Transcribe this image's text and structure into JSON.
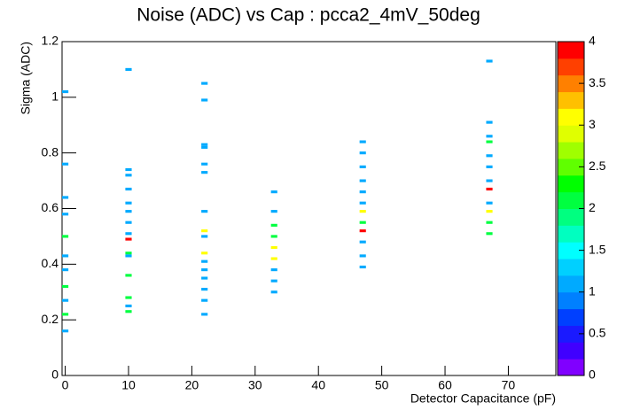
{
  "chart_data": {
    "type": "heatmap2d",
    "title": "Noise (ADC) vs Cap : pcca2_4mV_50deg",
    "x_label": "Detector Capacitance (pF)",
    "y_label": "Sigma (ADC)",
    "xlim": [
      -0.5,
      77.5
    ],
    "xticks": [
      0,
      10,
      20,
      30,
      40,
      50,
      60,
      70
    ],
    "ylim": [
      0,
      1.2
    ],
    "yticks": [
      0,
      0.2,
      0.4,
      0.6,
      0.8,
      1,
      1.2
    ],
    "zlim": [
      0,
      4
    ],
    "zticks": [
      0,
      0.5,
      1,
      1.5,
      2,
      2.5,
      3,
      3.5,
      4
    ],
    "palette": [
      "#8000ff",
      "#4000ff",
      "#1a1aff",
      "#0040ff",
      "#0080ff",
      "#00aaff",
      "#00d0ff",
      "#00ffff",
      "#00ffc0",
      "#00ff80",
      "#00ff40",
      "#00ff00",
      "#60ff00",
      "#a0ff00",
      "#e0ff00",
      "#ffff00",
      "#ffc000",
      "#ff8000",
      "#ff4000",
      "#ff0000"
    ],
    "x": [
      0,
      0,
      0,
      0,
      0,
      0,
      0,
      0,
      0,
      0,
      0,
      10,
      10,
      10,
      10,
      10,
      10,
      10,
      10,
      10,
      10,
      10,
      10,
      10,
      10,
      10,
      22,
      22,
      22,
      22,
      22,
      22,
      22,
      22,
      22,
      22,
      22,
      22,
      22,
      22,
      22,
      22,
      33,
      33,
      33,
      33,
      33,
      33,
      33,
      33,
      33,
      47,
      47,
      47,
      47,
      47,
      47,
      47,
      47,
      47,
      47,
      47,
      47,
      67,
      67,
      67,
      67,
      67,
      67,
      67,
      67,
      67,
      67,
      67,
      67
    ],
    "y": [
      1.02,
      0.76,
      0.64,
      0.58,
      0.5,
      0.43,
      0.38,
      0.32,
      0.27,
      0.22,
      0.16,
      1.1,
      0.74,
      0.72,
      0.67,
      0.62,
      0.59,
      0.55,
      0.51,
      0.49,
      0.44,
      0.43,
      0.36,
      0.28,
      0.25,
      0.23,
      1.05,
      0.99,
      0.83,
      0.82,
      0.76,
      0.73,
      0.59,
      0.52,
      0.5,
      0.44,
      0.41,
      0.38,
      0.35,
      0.31,
      0.27,
      0.22,
      0.66,
      0.59,
      0.54,
      0.5,
      0.46,
      0.42,
      0.38,
      0.34,
      0.3,
      0.84,
      0.8,
      0.75,
      0.7,
      0.66,
      0.62,
      0.59,
      0.55,
      0.52,
      0.48,
      0.43,
      0.39,
      1.13,
      0.91,
      0.86,
      0.84,
      0.79,
      0.75,
      0.7,
      0.67,
      0.62,
      0.59,
      0.55,
      0.51
    ],
    "z": [
      1,
      1,
      1,
      1,
      2,
      1,
      1,
      2,
      1,
      2,
      1,
      1,
      1,
      1,
      1,
      1,
      1,
      1,
      1,
      3.8,
      2,
      1,
      2,
      2,
      1,
      2,
      1,
      1,
      1,
      1,
      1,
      1,
      1,
      3,
      1,
      3,
      1,
      1,
      1,
      1,
      1,
      1,
      1,
      1,
      2,
      2,
      3,
      3,
      1,
      1,
      1,
      1,
      1,
      1,
      1,
      1,
      1,
      3,
      2,
      3.8,
      1,
      1,
      1,
      1,
      1,
      1,
      2,
      1,
      1,
      1,
      3.8,
      1,
      3,
      2,
      2
    ]
  }
}
